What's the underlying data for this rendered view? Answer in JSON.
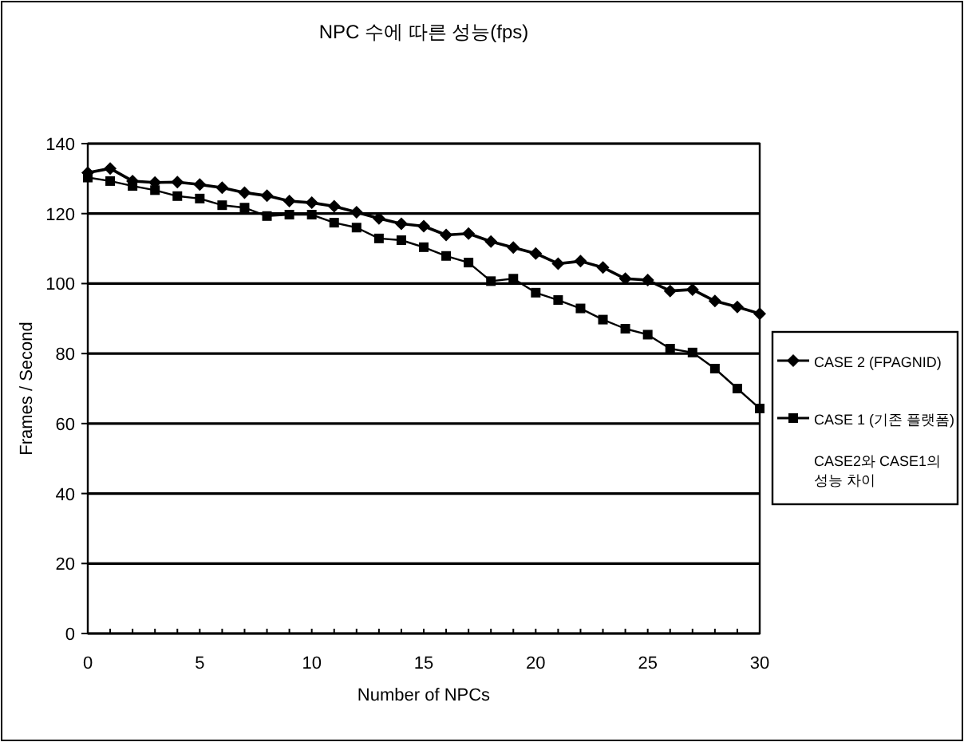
{
  "chart_data": {
    "type": "line",
    "title": "NPC 수에 따른 성능(fps)",
    "xlabel": "Number of NPCs",
    "ylabel": "Frames / Second",
    "x": [
      0,
      1,
      2,
      3,
      4,
      5,
      6,
      7,
      8,
      9,
      10,
      11,
      12,
      13,
      14,
      15,
      16,
      17,
      18,
      19,
      20,
      21,
      22,
      23,
      24,
      25,
      26,
      27,
      28,
      29,
      30
    ],
    "series": [
      {
        "name": "CASE 2 (FPAGNID)",
        "color": "#000000",
        "marker": "diamond",
        "values": [
          131.7,
          132.9,
          129.3,
          128.9,
          129,
          128.3,
          127.4,
          126,
          125.1,
          123.6,
          123.1,
          122.1,
          120.4,
          118.6,
          117.1,
          116.4,
          113.9,
          114.3,
          112,
          110.3,
          108.6,
          105.7,
          106.4,
          104.6,
          101.4,
          101,
          97.9,
          98.3,
          95,
          93.3,
          91.4
        ]
      },
      {
        "name": "CASE 1 (기존 플랫폼)",
        "color": "#000000",
        "marker": "square",
        "values": [
          130.3,
          129.3,
          127.9,
          126.7,
          125,
          124.3,
          122.4,
          121.7,
          119.3,
          119.7,
          119.7,
          117.4,
          116,
          112.9,
          112.4,
          110.4,
          107.9,
          106,
          100.7,
          101.4,
          97.4,
          95.3,
          92.9,
          89.7,
          87.1,
          85.4,
          81.4,
          80.3,
          75.7,
          70,
          64.3
        ]
      }
    ],
    "annotations": [
      "CASE2와 CASE1의 성능 차이"
    ],
    "xlim": [
      0,
      30
    ],
    "xticks": [
      0,
      5,
      10,
      15,
      20,
      25,
      30
    ],
    "ylim": [
      0,
      140
    ],
    "yticks": [
      0,
      20,
      40,
      60,
      80,
      100,
      120,
      140
    ],
    "grid": "y",
    "legend": "right"
  }
}
